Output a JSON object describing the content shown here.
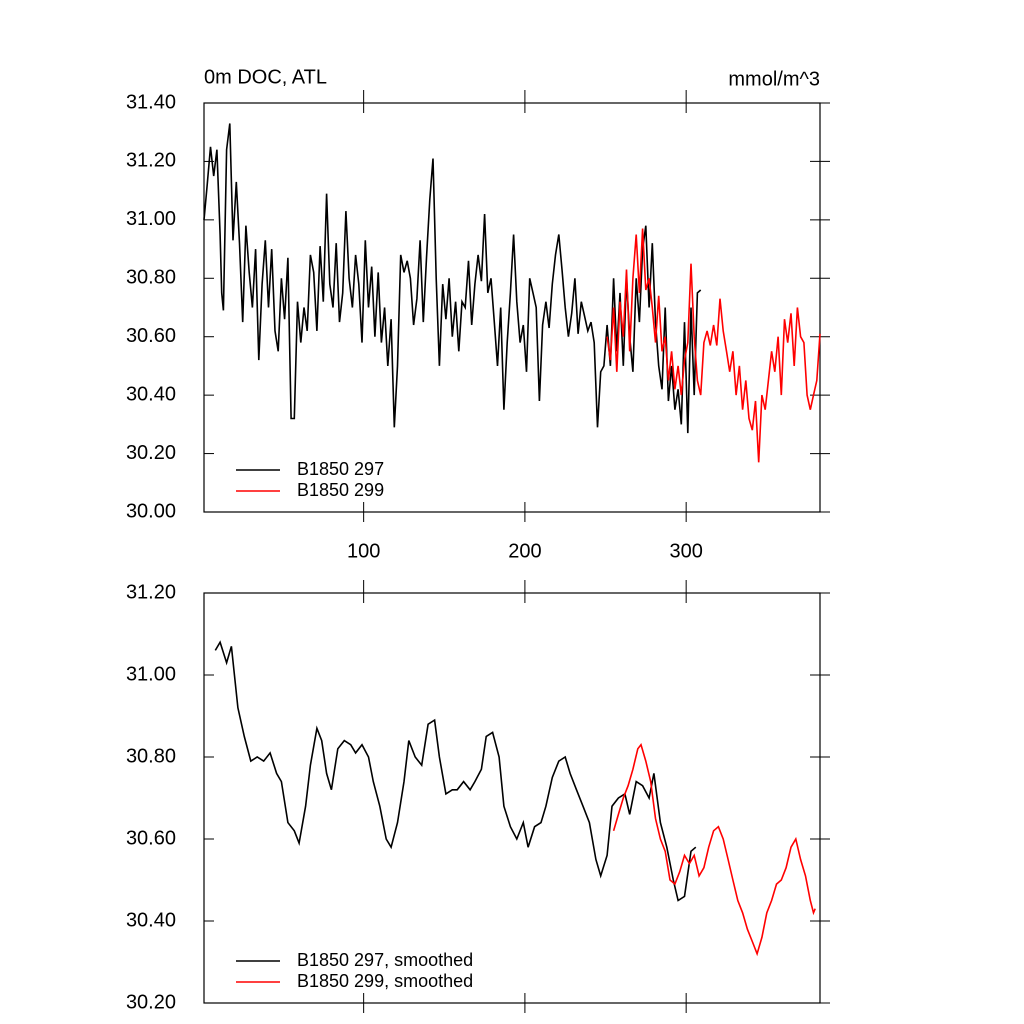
{
  "chart_data": [
    {
      "type": "line",
      "title": "0m DOC, ATL",
      "units": "mmol/m^3",
      "xlim": [
        1,
        383
      ],
      "ylim": [
        30.0,
        31.4
      ],
      "xticks": [
        100,
        200,
        300
      ],
      "yticks": [
        {
          "value": 30.0,
          "label": "30.00"
        },
        {
          "value": 30.2,
          "label": "30.20"
        },
        {
          "value": 30.4,
          "label": "30.40"
        },
        {
          "value": 30.6,
          "label": "30.60"
        },
        {
          "value": 30.8,
          "label": "30.80"
        },
        {
          "value": 31.0,
          "label": "31.00"
        },
        {
          "value": 31.2,
          "label": "31.20"
        },
        {
          "value": 31.4,
          "label": "31.40"
        }
      ],
      "legend": "lower left",
      "series": [
        {
          "name": "B1850 297",
          "color": "#000000",
          "x": [
            1,
            3,
            5,
            7,
            9,
            11,
            12,
            13,
            15,
            17,
            19,
            21,
            23,
            25,
            27,
            29,
            31,
            33,
            35,
            37,
            39,
            41,
            43,
            45,
            47,
            49,
            51,
            53,
            55,
            57,
            59,
            61,
            63,
            65,
            67,
            69,
            71,
            73,
            75,
            77,
            79,
            81,
            83,
            85,
            87,
            89,
            91,
            93,
            95,
            97,
            99,
            101,
            103,
            105,
            107,
            109,
            111,
            113,
            115,
            117,
            119,
            121,
            123,
            125,
            127,
            129,
            131,
            133,
            135,
            137,
            139,
            141,
            143,
            145,
            147,
            149,
            151,
            153,
            155,
            157,
            159,
            161,
            163,
            165,
            167,
            169,
            171,
            173,
            175,
            177,
            179,
            181,
            183,
            185,
            187,
            189,
            191,
            193,
            195,
            197,
            199,
            201,
            203,
            205,
            207,
            209,
            211,
            213,
            215,
            217,
            219,
            221,
            223,
            225,
            227,
            229,
            231,
            233,
            235,
            237,
            239,
            241,
            243,
            245,
            247,
            249,
            251,
            253,
            255,
            257,
            259,
            261,
            263,
            265,
            267,
            269,
            271,
            273,
            275,
            277,
            279,
            281,
            283,
            285,
            287,
            289,
            291,
            293,
            295,
            297,
            299,
            301,
            303,
            305,
            307,
            309
          ],
          "values": [
            31.0,
            31.12,
            31.25,
            31.15,
            31.24,
            30.95,
            30.75,
            30.69,
            31.24,
            31.33,
            30.93,
            31.13,
            30.92,
            30.65,
            30.98,
            30.82,
            30.7,
            30.9,
            30.52,
            30.78,
            30.93,
            30.7,
            30.9,
            30.62,
            30.55,
            30.8,
            30.66,
            30.87,
            30.32,
            30.32,
            30.72,
            30.58,
            30.7,
            30.62,
            30.88,
            30.82,
            30.62,
            30.91,
            30.72,
            31.09,
            30.78,
            30.7,
            30.92,
            30.65,
            30.75,
            31.03,
            30.8,
            30.7,
            30.88,
            30.78,
            30.58,
            30.93,
            30.7,
            30.84,
            30.6,
            30.82,
            30.58,
            30.7,
            30.5,
            30.66,
            30.29,
            30.5,
            30.88,
            30.82,
            30.86,
            30.8,
            30.64,
            30.73,
            30.93,
            30.65,
            30.87,
            31.07,
            31.21,
            30.8,
            30.5,
            30.78,
            30.66,
            30.8,
            30.6,
            30.72,
            30.55,
            30.72,
            30.7,
            30.86,
            30.64,
            30.78,
            30.88,
            30.79,
            31.02,
            30.75,
            30.8,
            30.65,
            30.5,
            30.7,
            30.35,
            30.58,
            30.75,
            30.95,
            30.72,
            30.58,
            30.64,
            30.48,
            30.8,
            30.75,
            30.7,
            30.38,
            30.64,
            30.72,
            30.63,
            30.78,
            30.88,
            30.95,
            30.83,
            30.7,
            30.6,
            30.68,
            30.8,
            30.61,
            30.72,
            30.67,
            30.62,
            30.65,
            30.58,
            30.29,
            30.48,
            30.5,
            30.64,
            30.5,
            30.8,
            30.55,
            30.75,
            30.5,
            30.8,
            30.6,
            30.48,
            30.8,
            30.65,
            30.9,
            30.98,
            30.7,
            30.92,
            30.65,
            30.5,
            30.42,
            30.7,
            30.38,
            30.5,
            30.35,
            30.42,
            30.3,
            30.65,
            30.27,
            30.7,
            30.4,
            30.75,
            30.76
          ]
        },
        {
          "name": "B1850 299",
          "color": "#ff0000",
          "x": [
            251,
            253,
            255,
            257,
            259,
            261,
            263,
            265,
            267,
            269,
            271,
            273,
            275,
            277,
            279,
            281,
            283,
            285,
            287,
            289,
            291,
            293,
            295,
            297,
            299,
            301,
            303,
            305,
            307,
            309,
            311,
            313,
            315,
            317,
            319,
            321,
            323,
            325,
            327,
            329,
            331,
            333,
            335,
            337,
            339,
            341,
            343,
            345,
            347,
            349,
            351,
            353,
            355,
            357,
            359,
            361,
            363,
            365,
            367,
            369,
            371,
            373,
            375,
            377,
            379,
            381,
            383
          ],
          "values": [
            30.6,
            30.52,
            30.7,
            30.48,
            30.72,
            30.6,
            30.83,
            30.55,
            30.8,
            30.95,
            30.75,
            30.97,
            30.76,
            30.8,
            30.7,
            30.58,
            30.74,
            30.55,
            30.6,
            30.45,
            30.55,
            30.42,
            30.5,
            30.4,
            30.52,
            30.58,
            30.85,
            30.6,
            30.45,
            30.4,
            30.58,
            30.62,
            30.57,
            30.64,
            30.57,
            30.73,
            30.62,
            30.55,
            30.48,
            30.55,
            30.4,
            30.5,
            30.35,
            30.45,
            30.32,
            30.28,
            30.38,
            30.17,
            30.4,
            30.35,
            30.45,
            30.55,
            30.48,
            30.6,
            30.4,
            30.66,
            30.58,
            30.68,
            30.5,
            30.7,
            30.6,
            30.58,
            30.4,
            30.35,
            30.4,
            30.45,
            30.61
          ]
        }
      ]
    },
    {
      "type": "line",
      "xlim": [
        1,
        383
      ],
      "ylim": [
        30.2,
        31.2
      ],
      "yticks": [
        {
          "value": 30.2,
          "label": "30.20"
        },
        {
          "value": 30.4,
          "label": "30.40"
        },
        {
          "value": 30.6,
          "label": "30.60"
        },
        {
          "value": 30.8,
          "label": "30.80"
        },
        {
          "value": 31.0,
          "label": "31.00"
        },
        {
          "value": 31.2,
          "label": "31.20"
        }
      ],
      "legend": "lower left",
      "series": [
        {
          "name": "B1850 297, smoothed",
          "color": "#000000",
          "x": [
            8,
            11,
            15,
            18,
            22,
            26,
            30,
            34,
            38,
            42,
            46,
            49,
            53,
            57,
            60,
            64,
            67,
            71,
            74,
            77,
            80,
            84,
            88,
            92,
            95,
            99,
            103,
            106,
            110,
            114,
            117,
            121,
            125,
            128,
            132,
            136,
            140,
            144,
            147,
            151,
            155,
            158,
            162,
            166,
            169,
            173,
            176,
            180,
            184,
            187,
            191,
            195,
            199,
            202,
            206,
            210,
            213,
            217,
            221,
            225,
            228,
            232,
            236,
            240,
            244,
            247,
            251,
            254,
            258,
            262,
            265,
            269,
            273,
            277,
            280,
            284,
            288,
            292,
            295,
            299,
            303,
            306
          ],
          "values": [
            31.06,
            31.08,
            31.03,
            31.07,
            30.92,
            30.85,
            30.79,
            30.8,
            30.79,
            30.81,
            30.76,
            30.74,
            30.64,
            30.62,
            30.59,
            30.68,
            30.78,
            30.87,
            30.84,
            30.76,
            30.72,
            30.82,
            30.84,
            30.83,
            30.81,
            30.83,
            30.8,
            30.74,
            30.68,
            30.6,
            30.58,
            30.64,
            30.74,
            30.84,
            30.8,
            30.78,
            30.88,
            30.89,
            30.8,
            30.71,
            30.72,
            30.72,
            30.74,
            30.72,
            30.74,
            30.77,
            30.85,
            30.86,
            30.8,
            30.68,
            30.63,
            30.6,
            30.64,
            30.58,
            30.63,
            30.64,
            30.68,
            30.75,
            30.79,
            30.8,
            30.76,
            30.72,
            30.68,
            30.64,
            30.55,
            30.51,
            30.56,
            30.68,
            30.7,
            30.71,
            30.66,
            30.74,
            30.73,
            30.7,
            30.76,
            30.64,
            30.58,
            30.5,
            30.45,
            30.46,
            30.57,
            30.58
          ]
        },
        {
          "name": "B1850 299, smoothed",
          "color": "#ff0000",
          "x": [
            255,
            258,
            261,
            264,
            267,
            270,
            272,
            275,
            278,
            281,
            284,
            287,
            290,
            293,
            296,
            299,
            302,
            305,
            308,
            311,
            314,
            317,
            320,
            323,
            326,
            329,
            332,
            335,
            338,
            341,
            344,
            347,
            350,
            353,
            356,
            359,
            362,
            365,
            368,
            371,
            374,
            377,
            379,
            380
          ],
          "values": [
            30.62,
            30.66,
            30.7,
            30.73,
            30.77,
            30.82,
            30.83,
            30.79,
            30.74,
            30.65,
            30.6,
            30.57,
            30.5,
            30.49,
            30.52,
            30.56,
            30.54,
            30.56,
            30.51,
            30.53,
            30.58,
            30.62,
            30.63,
            30.6,
            30.55,
            30.5,
            30.45,
            30.42,
            30.38,
            30.35,
            30.32,
            30.36,
            30.42,
            30.45,
            30.49,
            30.5,
            30.53,
            30.58,
            30.6,
            30.55,
            30.51,
            30.45,
            30.42,
            30.43
          ]
        }
      ]
    }
  ]
}
